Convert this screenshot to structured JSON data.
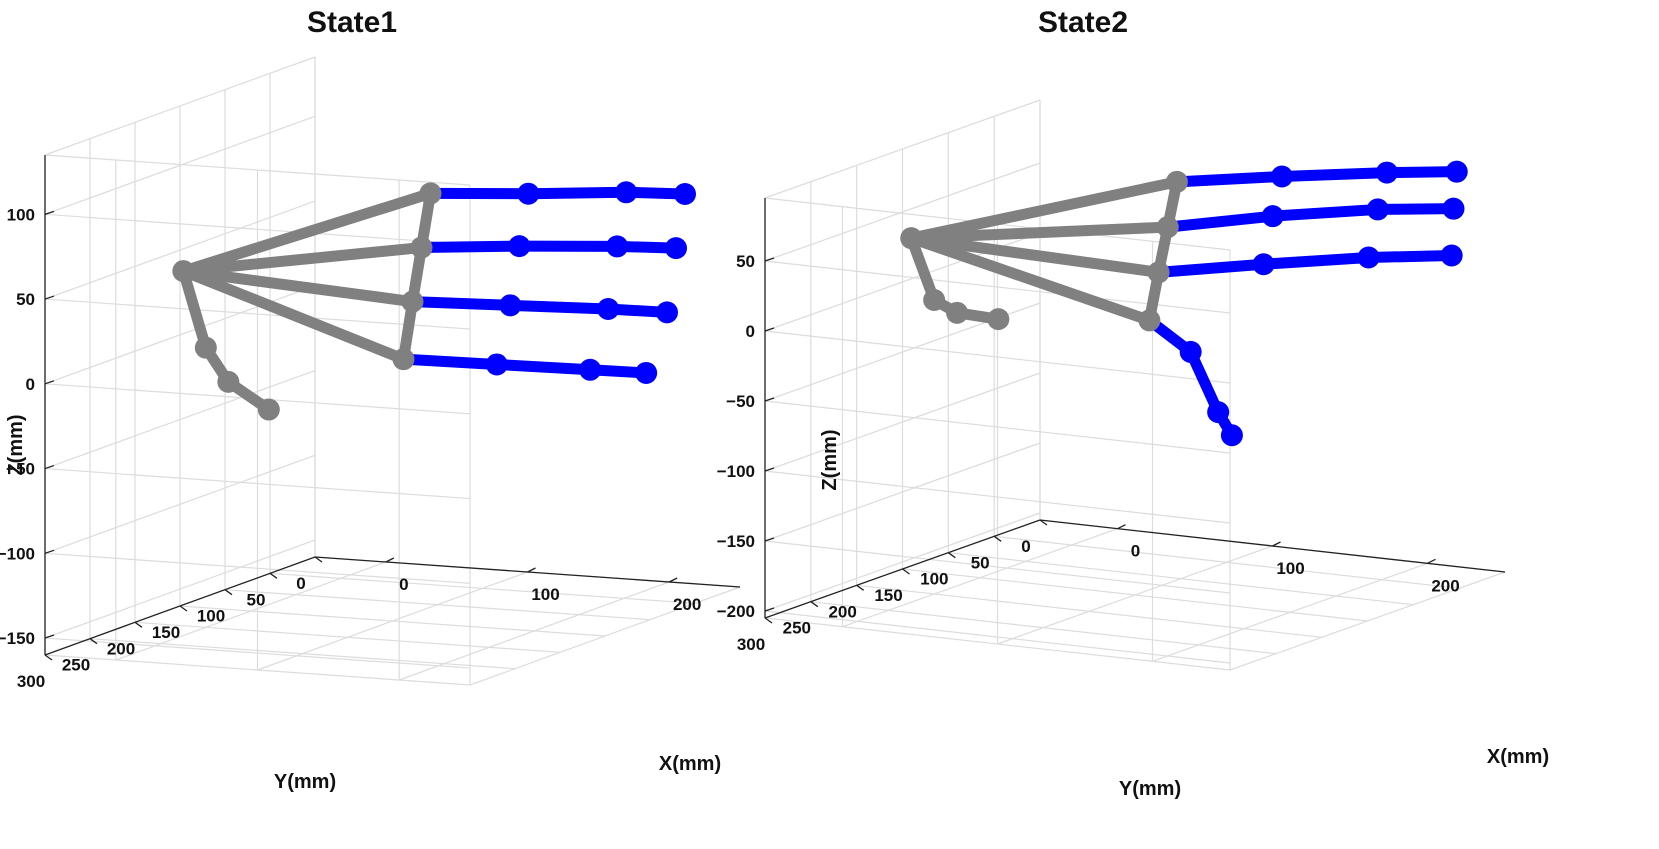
{
  "chart_data": [
    {
      "type": "scatter",
      "title": "State1",
      "xlabel": "X(mm)",
      "ylabel": "Y(mm)",
      "zlabel": "Z(mm)",
      "x_ticks": [
        "0",
        "100",
        "200"
      ],
      "y_ticks": [
        "0",
        "50",
        "100",
        "150",
        "200",
        "250",
        "300"
      ],
      "z_ticks": [
        "−150",
        "−100",
        "−50",
        "0",
        "50",
        "100"
      ],
      "xlim": [
        -50,
        250
      ],
      "ylim": [
        0,
        300
      ],
      "zlim": [
        -160,
        135
      ],
      "grid": true,
      "colors": {
        "palm": "#808080",
        "finger": "#0000ff"
      },
      "wrist": [
        0,
        225,
        55
      ],
      "thumb": [
        [
          0,
          225,
          55
        ],
        [
          0,
          200,
          5
        ],
        [
          0,
          175,
          -20
        ],
        [
          0,
          130,
          -45
        ]
      ],
      "knuckles": [
        [
          130,
          185,
          3
        ],
        [
          130,
          175,
          35
        ],
        [
          130,
          165,
          65
        ],
        [
          130,
          155,
          95
        ]
      ],
      "fingers": [
        [
          [
            130,
            185,
            3
          ],
          [
            180,
            160,
            -2
          ],
          [
            230,
            135,
            -7
          ],
          [
            260,
            120,
            -10
          ]
        ],
        [
          [
            130,
            175,
            35
          ],
          [
            180,
            145,
            30
          ],
          [
            230,
            115,
            25
          ],
          [
            262,
            100,
            22
          ]
        ],
        [
          [
            130,
            165,
            65
          ],
          [
            180,
            135,
            63
          ],
          [
            230,
            105,
            60
          ],
          [
            262,
            90,
            58
          ]
        ],
        [
          [
            130,
            155,
            95
          ],
          [
            180,
            125,
            92
          ],
          [
            230,
            95,
            90
          ],
          [
            262,
            80,
            88
          ]
        ]
      ]
    },
    {
      "type": "scatter",
      "title": "State2",
      "xlabel": "X(mm)",
      "ylabel": "Y(mm)",
      "zlabel": "Z(mm)",
      "x_ticks": [
        "0",
        "100",
        "200"
      ],
      "y_ticks": [
        "0",
        "50",
        "100",
        "150",
        "200",
        "250",
        "300"
      ],
      "z_ticks": [
        "−200",
        "−150",
        "−100",
        "−50",
        "0",
        "50"
      ],
      "xlim": [
        -50,
        250
      ],
      "ylim": [
        0,
        300
      ],
      "zlim": [
        -205,
        95
      ],
      "grid": true,
      "colors": {
        "palm": "#808080",
        "finger": "#0000ff"
      },
      "wrist": [
        0,
        225,
        55
      ],
      "thumb": [
        [
          0,
          225,
          55
        ],
        [
          0,
          200,
          5
        ],
        [
          0,
          175,
          -10
        ],
        [
          0,
          130,
          -25
        ]
      ],
      "knuckles": [
        [
          130,
          185,
          3
        ],
        [
          130,
          175,
          35
        ],
        [
          130,
          165,
          65
        ],
        [
          130,
          155,
          95
        ]
      ],
      "fingers": [
        [
          [
            130,
            185,
            3
          ],
          [
            130,
            140,
            -30
          ],
          [
            130,
            110,
            -80
          ],
          [
            130,
            95,
            -100
          ]
        ],
        [
          [
            130,
            175,
            35
          ],
          [
            180,
            145,
            40
          ],
          [
            230,
            115,
            44
          ],
          [
            270,
            92,
            45
          ]
        ],
        [
          [
            130,
            165,
            65
          ],
          [
            180,
            135,
            72
          ],
          [
            230,
            105,
            76
          ],
          [
            270,
            90,
            78
          ]
        ],
        [
          [
            130,
            155,
            95
          ],
          [
            180,
            125,
            98
          ],
          [
            230,
            95,
            100
          ],
          [
            265,
            78,
            101
          ]
        ]
      ]
    }
  ]
}
